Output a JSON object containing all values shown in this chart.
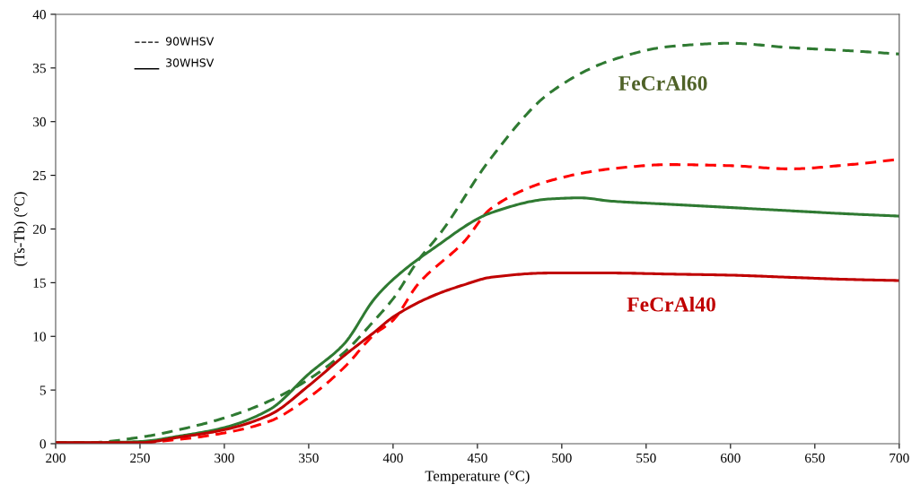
{
  "chart_data": {
    "type": "line",
    "xlabel": "Temperature (°C)",
    "ylabel": "(Ts-Tb) (°C)",
    "xlim": [
      200,
      700
    ],
    "xticks": [
      200,
      250,
      300,
      350,
      400,
      450,
      500,
      550,
      600,
      650,
      700
    ],
    "ylim": [
      0,
      40
    ],
    "yticks": [
      0,
      5,
      10,
      15,
      20,
      25,
      30,
      35,
      40
    ],
    "grid": false,
    "series": [
      {
        "color": "#2f7a32",
        "line_style": "dashed",
        "x": [
          200,
          220,
          250,
          273,
          300,
          327,
          350,
          371,
          389,
          400,
          415,
          428,
          458,
          493,
          529,
          564,
          600,
          635,
          671,
          700
        ],
        "values": [
          0.1,
          0.1,
          0.6,
          1.3,
          2.4,
          4.0,
          6.0,
          8.5,
          11.5,
          13.5,
          17.1,
          19.6,
          26.6,
          32.7,
          35.7,
          37.0,
          37.3,
          36.9,
          36.6,
          36.3
        ]
      },
      {
        "color": "#ff0000",
        "line_style": "dashed",
        "x": [
          200,
          220,
          250,
          273,
          300,
          327,
          350,
          371,
          389,
          400,
          415,
          442,
          458,
          493,
          529,
          564,
          600,
          635,
          671,
          700
        ],
        "values": [
          0.1,
          0.1,
          0.1,
          0.4,
          1.0,
          2.1,
          4.3,
          7.1,
          10.2,
          11.5,
          14.9,
          18.8,
          21.9,
          24.5,
          25.6,
          26.0,
          25.9,
          25.6,
          26.0,
          26.5
        ]
      },
      {
        "color": "#2f7a32",
        "line_style": "solid",
        "x": [
          200,
          220,
          250,
          273,
          300,
          327,
          350,
          371,
          389,
          400,
          424,
          458,
          493,
          511,
          529,
          564,
          600,
          635,
          671,
          700
        ],
        "values": [
          0.1,
          0.1,
          0.2,
          0.7,
          1.5,
          3.2,
          6.5,
          9.3,
          13.5,
          15.3,
          18.2,
          21.5,
          22.8,
          22.9,
          22.6,
          22.3,
          22.0,
          21.7,
          21.4,
          21.2
        ]
      },
      {
        "color": "#c00000",
        "line_style": "solid",
        "x": [
          200,
          220,
          250,
          273,
          300,
          327,
          350,
          371,
          389,
          400,
          424,
          442,
          458,
          493,
          529,
          564,
          600,
          635,
          671,
          700
        ],
        "values": [
          0.1,
          0.1,
          0.1,
          0.6,
          1.3,
          2.7,
          5.4,
          8.2,
          10.4,
          11.8,
          13.8,
          14.8,
          15.5,
          15.9,
          15.9,
          15.8,
          15.7,
          15.5,
          15.3,
          15.2
        ]
      }
    ],
    "annotations": [
      "FeCrAl60",
      "FeCrAl40",
      "90WHSV",
      "30WHSV"
    ]
  }
}
